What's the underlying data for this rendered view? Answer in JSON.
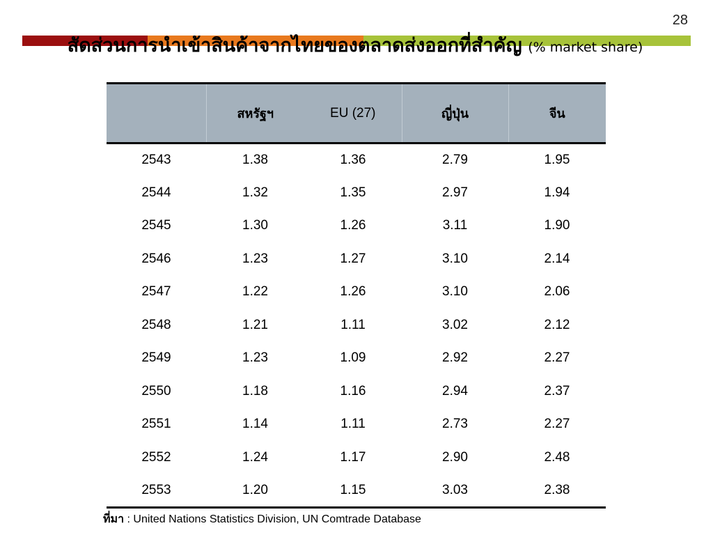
{
  "page_number": "28",
  "colors": {
    "stripe": [
      "#9b0f0f",
      "#e8791e",
      "#a7c33a"
    ],
    "header_bg": "#a4b1bc"
  },
  "title": {
    "main": "สัดส่วนการนำเข้าสินค้าจากไทยของตลาดส่งออกที่สำคัญ",
    "unit": "(% market share)"
  },
  "table": {
    "headers": [
      "",
      "สหรัฐฯ",
      "EU (27)",
      "ญี่ปุ่น",
      "จีน"
    ],
    "rows": [
      [
        "2543",
        "1.38",
        "1.36",
        "2.79",
        "1.95"
      ],
      [
        "2544",
        "1.32",
        "1.35",
        "2.97",
        "1.94"
      ],
      [
        "2545",
        "1.30",
        "1.26",
        "3.11",
        "1.90"
      ],
      [
        "2546",
        "1.23",
        "1.27",
        "3.10",
        "2.14"
      ],
      [
        "2547",
        "1.22",
        "1.26",
        "3.10",
        "2.06"
      ],
      [
        "2548",
        "1.21",
        "1.11",
        "3.02",
        "2.12"
      ],
      [
        "2549",
        "1.23",
        "1.09",
        "2.92",
        "2.27"
      ],
      [
        "2550",
        "1.18",
        "1.16",
        "2.94",
        "2.37"
      ],
      [
        "2551",
        "1.14",
        "1.11",
        "2.73",
        "2.27"
      ],
      [
        "2552",
        "1.24",
        "1.17",
        "2.90",
        "2.48"
      ],
      [
        "2553",
        "1.20",
        "1.15",
        "3.03",
        "2.38"
      ]
    ]
  },
  "source": {
    "label": "ที่มา",
    "text": ": United Nations Statistics Division, UN Comtrade Database"
  }
}
